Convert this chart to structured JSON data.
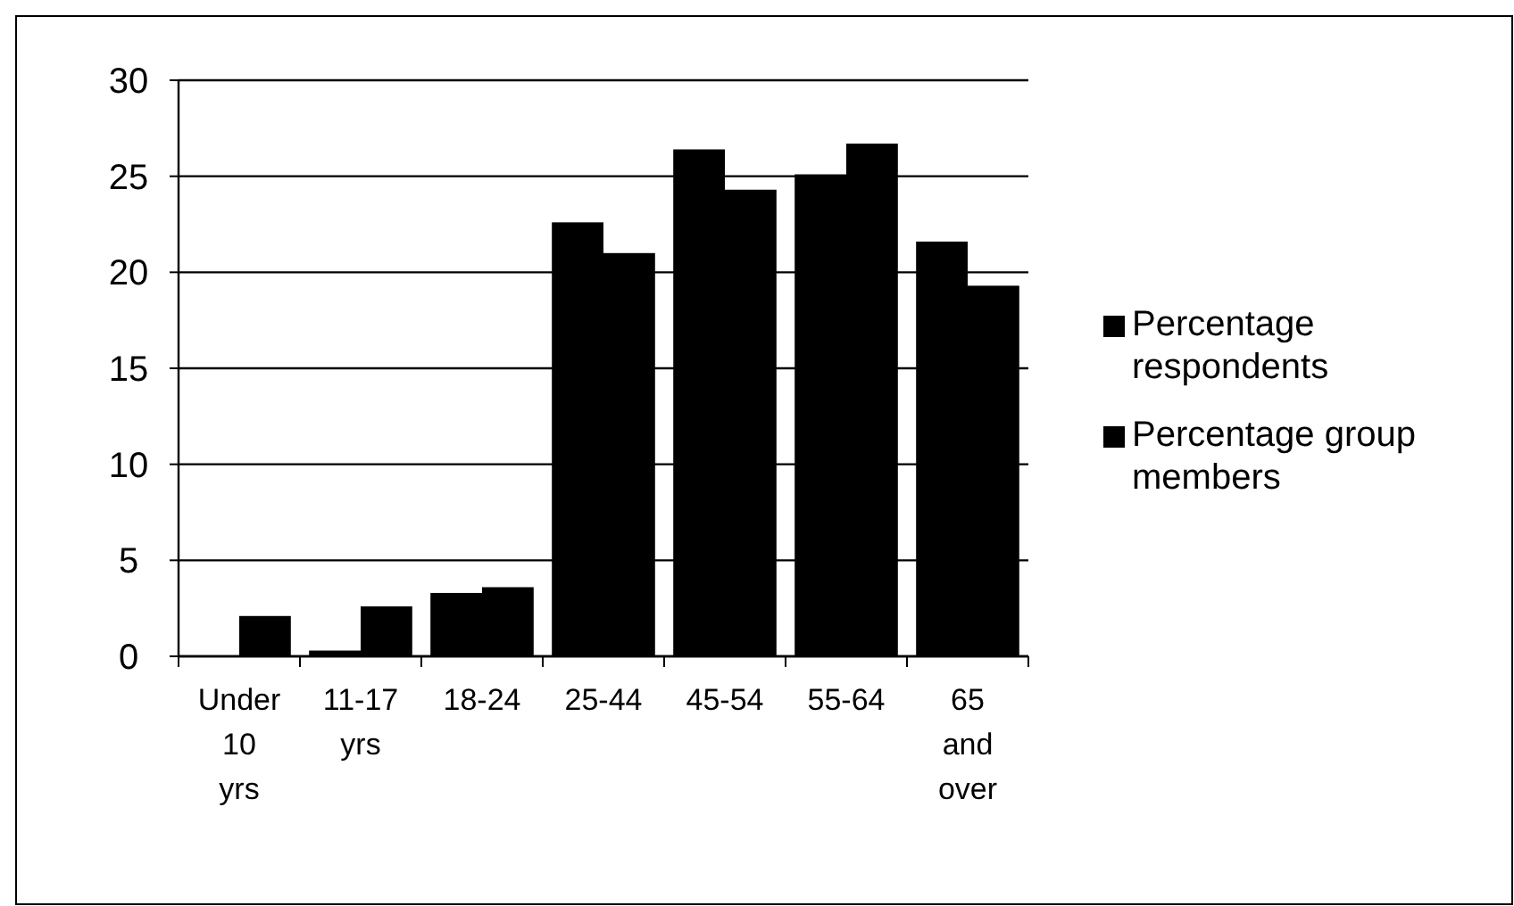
{
  "chart_data": {
    "type": "bar",
    "categories": [
      "Under 10 yrs",
      "11-17 yrs",
      "18-24",
      "25-44",
      "45-54",
      "55-64",
      "65 and over"
    ],
    "series": [
      {
        "name": "Percentage respondents",
        "color": "#000000",
        "values": [
          0,
          0.3,
          3.3,
          22.6,
          26.4,
          25.1,
          21.6
        ]
      },
      {
        "name": "Percentage group members",
        "color": "#000000",
        "values": [
          2.1,
          2.6,
          3.6,
          21.0,
          24.3,
          26.7,
          19.3
        ]
      }
    ],
    "ylim": [
      0,
      30
    ],
    "yticks": [
      0,
      5,
      10,
      15,
      20,
      25,
      30
    ],
    "grid": "y",
    "legend": "right"
  }
}
